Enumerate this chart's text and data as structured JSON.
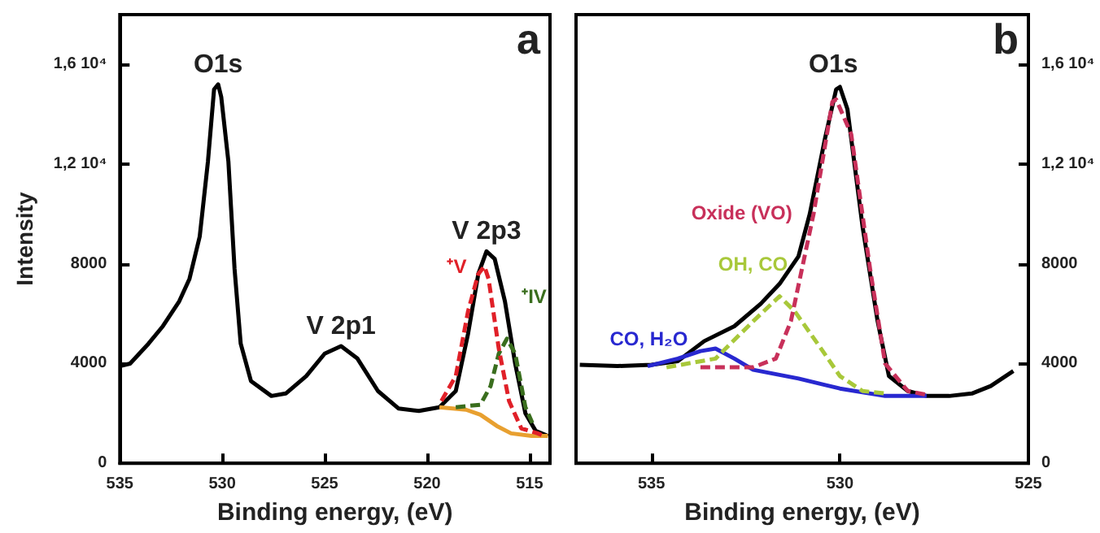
{
  "chart_data": [
    {
      "type": "line",
      "xlabel": "Binding energy, (eV)",
      "ylabel": "Intensity",
      "xlim": [
        535,
        514
      ],
      "xticks": [
        535,
        530,
        525,
        520,
        515
      ],
      "ylim": [
        0,
        18000
      ],
      "yticks": [
        0,
        4000,
        8000,
        {
          "value": 12000,
          "label": "1,2 10⁴"
        },
        {
          "value": 16000,
          "label": "1,6 10⁴"
        }
      ],
      "marker": "none",
      "annotations": [
        "a",
        {
          "text": "O1s",
          "x": 530.2,
          "y": 15200
        },
        {
          "text": "V 2p1",
          "x": 524.2,
          "y": 4700
        },
        {
          "text": "V 2p3",
          "x": 517.1,
          "y": 8500
        }
      ],
      "series": [
        {
          "color": "#000000",
          "line_style": "solid",
          "x": [
            535,
            534.5,
            533.6,
            532.9,
            532.1,
            531.6,
            531.1,
            530.7,
            530.4,
            530.2,
            530.05,
            529.7,
            529.4,
            529.1,
            528.6,
            527.6,
            526.9,
            525.9,
            525,
            524.2,
            523.4,
            522.4,
            521.4,
            520.4,
            519.4,
            518.6,
            518,
            517.5,
            517.1,
            516.7,
            516.2,
            515.7,
            515.2,
            514.7,
            514.1
          ],
          "values": [
            3900,
            4000,
            4800,
            5500,
            6500,
            7400,
            9100,
            12100,
            15000,
            15200,
            14700,
            12100,
            7800,
            4800,
            3300,
            2700,
            2800,
            3500,
            4400,
            4700,
            4200,
            2900,
            2200,
            2100,
            2250,
            2900,
            5200,
            7600,
            8500,
            8200,
            6500,
            4000,
            2000,
            1300,
            1100
          ]
        },
        {
          "name": "⁺V",
          "color": "#e02028",
          "line_style": "dashed",
          "x": [
            519.3,
            518.6,
            518,
            517.5,
            517.2,
            517,
            516.5,
            516,
            515.4,
            514.6,
            514.3
          ],
          "values": [
            2500,
            3500,
            6100,
            7600,
            7900,
            7400,
            4600,
            2500,
            1400,
            1200,
            1100
          ]
        },
        {
          "name": "⁺IV",
          "color": "#3a6e1e",
          "line_style": "dashed",
          "x": [
            518.6,
            517.4,
            516.9,
            516.5,
            516.1,
            515.7,
            515.2,
            514.8
          ],
          "values": [
            2250,
            2350,
            3100,
            4400,
            5000,
            4400,
            2250,
            1500
          ]
        },
        {
          "color": "#e8a030",
          "line_style": "solid",
          "x": [
            519.4,
            518.1,
            517.4,
            516.6,
            515.9,
            514.9,
            514.1
          ],
          "values": [
            2250,
            2150,
            1950,
            1500,
            1200,
            1100,
            1100
          ]
        }
      ]
    },
    {
      "type": "line",
      "xlabel": "Binding energy, (eV)",
      "xlim": [
        537,
        525
      ],
      "xticks": [
        535,
        530,
        525
      ],
      "y2lim": [
        0,
        18000
      ],
      "y2ticks": [
        0,
        4000,
        8000,
        {
          "value": 12000,
          "label": "1,2 10⁴"
        },
        {
          "value": 16000,
          "label": "1,6 10⁴"
        }
      ],
      "marker": "none",
      "annotations": [
        "b",
        "O1s"
      ],
      "series": [
        {
          "axis": "y2",
          "color": "#000000",
          "line_style": "solid",
          "x": [
            536.9,
            535.9,
            535,
            534.3,
            533.6,
            532.8,
            532.1,
            531.6,
            531.1,
            530.8,
            530.4,
            530.1,
            530,
            529.8,
            529.4,
            529,
            528.7,
            528.2,
            527.7,
            527.1,
            526.5,
            526,
            525.4
          ],
          "values": [
            3950,
            3900,
            3950,
            4100,
            4900,
            5500,
            6400,
            7200,
            8300,
            10000,
            13000,
            15000,
            15100,
            14200,
            9500,
            5700,
            3500,
            2900,
            2700,
            2700,
            2800,
            3100,
            3700
          ]
        },
        {
          "axis": "y2",
          "name": "Oxide (VO)",
          "color": "#c8305a",
          "line_style": "dashed",
          "x": [
            533.7,
            532.3,
            531.7,
            531.3,
            530.7,
            530.2,
            530.1,
            529.7,
            529.2,
            528.8,
            528.2,
            527.7
          ],
          "values": [
            3850,
            3850,
            4200,
            5700,
            10000,
            14500,
            14600,
            13200,
            7800,
            4000,
            2900,
            2750
          ]
        },
        {
          "axis": "y2",
          "name": "OH, CO",
          "color": "#a8c83a",
          "line_style": "dashed",
          "x": [
            534.6,
            533.3,
            532.3,
            531.6,
            531.2,
            530.5,
            530,
            529.4,
            528.8
          ],
          "values": [
            3850,
            4200,
            5700,
            6700,
            6100,
            4600,
            3500,
            2900,
            2800
          ]
        },
        {
          "axis": "y2",
          "name": "CO, H₂O",
          "color": "#2828d0",
          "line_style": "solid",
          "x": [
            535.1,
            534.3,
            533.7,
            533.3,
            532.8,
            532.3,
            531.1,
            530,
            528.8,
            527.7
          ],
          "values": [
            3900,
            4200,
            4500,
            4600,
            4200,
            3750,
            3400,
            3000,
            2700,
            2700
          ]
        }
      ]
    }
  ]
}
